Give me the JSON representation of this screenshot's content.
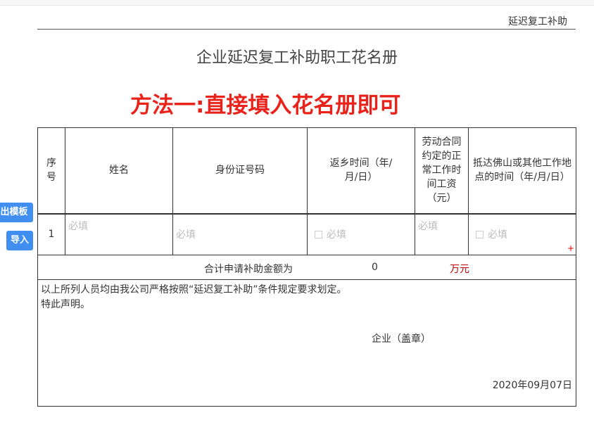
{
  "header": {
    "tag": "延迟复工补助",
    "title": "企业延迟复工补助职工花名册",
    "method": "方法一:直接填入花名册即可"
  },
  "buttons": {
    "export_template": "导出模板",
    "import": "导入"
  },
  "table": {
    "columns": [
      "序号",
      "姓名",
      "身份证号码",
      "返乡时间（年/月/日）",
      "劳动合同约定的正常工作时间工资（元）",
      "抵达佛山或其他工作地点的时间（年/月/日）"
    ],
    "rows": [
      {
        "index": "1",
        "name": "必填",
        "id": "必填",
        "return_date": "必填",
        "wage": "必填",
        "arrival_date": "必填"
      }
    ],
    "add": "+",
    "total_label": "合计申请补助金额为",
    "total_value": "0",
    "total_unit": "万元"
  },
  "note": {
    "line1": "以上所列人员均由我公司严格按照“延迟复工补助”条件规定要求划定。",
    "line2": "特此声明。",
    "seal": "企业（盖章）",
    "date": "2020年09月07日"
  },
  "colors": {
    "method": "#e8231b",
    "button": "#3f8ef0",
    "unit": "#c00000"
  }
}
